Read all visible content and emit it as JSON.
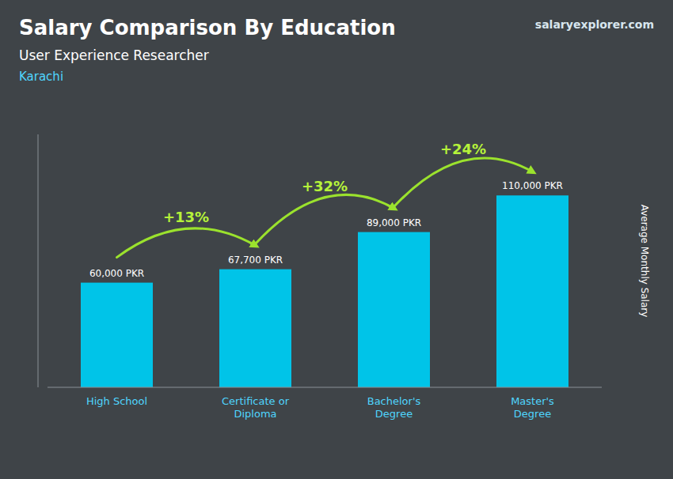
{
  "chart_data": {
    "type": "bar",
    "title": "Salary Comparison By Education",
    "subtitle": "User Experience Researcher",
    "location": "Karachi",
    "source": "salaryexplorer.com",
    "ylabel": "Average Monthly Salary",
    "categories": [
      "High School",
      "Certificate or\nDiploma",
      "Bachelor's\nDegree",
      "Master's\nDegree"
    ],
    "values": [
      60000,
      67700,
      89000,
      110000
    ],
    "value_labels": [
      "60,000 PKR",
      "67,700 PKR",
      "89,000 PKR",
      "110,000 PKR"
    ],
    "annotations": [
      "+13%",
      "+32%",
      "+24%"
    ],
    "color": "#00C4E8",
    "ylim": [
      0,
      145000
    ],
    "data_labels": true,
    "tick_labels": false,
    "grid": false
  }
}
